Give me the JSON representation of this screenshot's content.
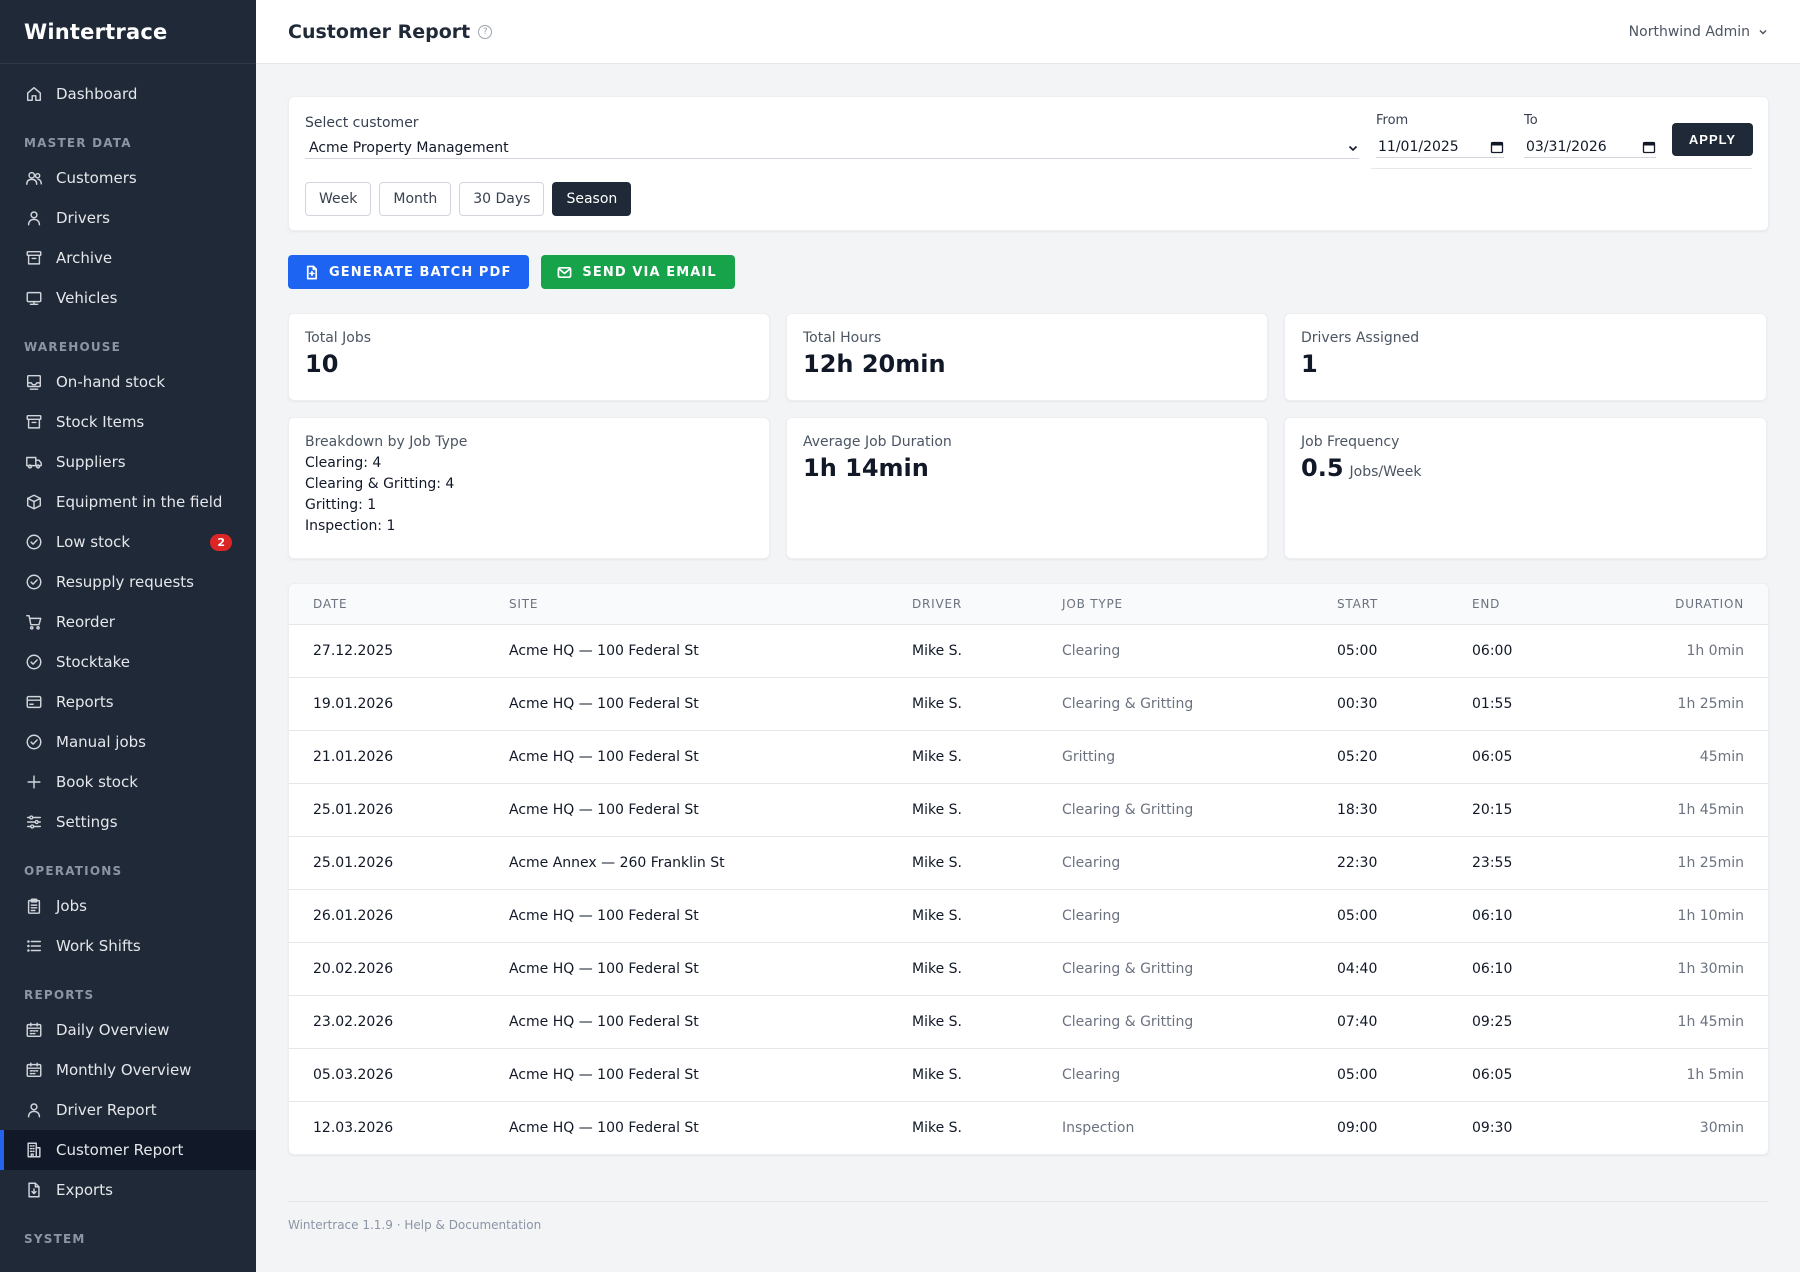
{
  "app": {
    "name": "Wintertrace",
    "version_label": "Wintertrace 1.1.9",
    "help_link": "Help & Documentation",
    "footer_sep": " · "
  },
  "sidebar": {
    "top": [
      {
        "label": "Dashboard",
        "icon": "home-icon"
      }
    ],
    "sections": [
      {
        "label": "MASTER DATA",
        "items": [
          {
            "label": "Customers",
            "icon": "users-icon"
          },
          {
            "label": "Drivers",
            "icon": "user-icon"
          },
          {
            "label": "Archive",
            "icon": "archive-icon"
          },
          {
            "label": "Vehicles",
            "icon": "vehicle-icon"
          }
        ]
      },
      {
        "label": "WAREHOUSE",
        "items": [
          {
            "label": "On-hand stock",
            "icon": "inbox-icon"
          },
          {
            "label": "Stock Items",
            "icon": "box-icon"
          },
          {
            "label": "Suppliers",
            "icon": "truck-icon"
          },
          {
            "label": "Equipment in the field",
            "icon": "cube-icon"
          },
          {
            "label": "Low stock",
            "icon": "check-circle-icon",
            "badge": "2"
          },
          {
            "label": "Resupply requests",
            "icon": "check-circle-icon"
          },
          {
            "label": "Reorder",
            "icon": "cart-icon"
          },
          {
            "label": "Stocktake",
            "icon": "check-circle-icon"
          },
          {
            "label": "Reports",
            "icon": "card-icon"
          },
          {
            "label": "Manual jobs",
            "icon": "check-circle-icon"
          },
          {
            "label": "Book stock",
            "icon": "plus-icon"
          },
          {
            "label": "Settings",
            "icon": "sliders-icon"
          }
        ]
      },
      {
        "label": "OPERATIONS",
        "items": [
          {
            "label": "Jobs",
            "icon": "clipboard-icon"
          },
          {
            "label": "Work Shifts",
            "icon": "list-icon"
          }
        ]
      },
      {
        "label": "REPORTS",
        "items": [
          {
            "label": "Daily Overview",
            "icon": "calendar-icon"
          },
          {
            "label": "Monthly Overview",
            "icon": "calendar-icon"
          },
          {
            "label": "Driver Report",
            "icon": "user-icon"
          },
          {
            "label": "Customer Report",
            "icon": "building-icon",
            "active": true
          },
          {
            "label": "Exports",
            "icon": "file-download-icon"
          }
        ]
      },
      {
        "label": "SYSTEM",
        "items": []
      }
    ]
  },
  "header": {
    "title": "Customer Report",
    "user": "Northwind Admin"
  },
  "filters": {
    "customer_label": "Select customer",
    "customer_value": "Acme Property Management",
    "from_label": "From",
    "from_value": "11/01/2025",
    "to_label": "To",
    "to_value": "03/31/2026",
    "apply_label": "APPLY",
    "ranges": [
      {
        "label": "Week",
        "active": false
      },
      {
        "label": "Month",
        "active": false
      },
      {
        "label": "30 Days",
        "active": false
      },
      {
        "label": "Season",
        "active": true
      }
    ]
  },
  "actions": {
    "pdf_label": "GENERATE BATCH PDF",
    "email_label": "SEND VIA EMAIL",
    "pdf_color": "#1d64f2",
    "email_color": "#16a34a"
  },
  "stats": {
    "total_jobs": {
      "label": "Total Jobs",
      "value": "10"
    },
    "total_hours": {
      "label": "Total Hours",
      "value": "12h 20min"
    },
    "drivers": {
      "label": "Drivers Assigned",
      "value": "1"
    },
    "breakdown": {
      "label": "Breakdown by Job Type",
      "lines": [
        "Clearing: 4",
        "Clearing & Gritting: 4",
        "Gritting: 1",
        "Inspection: 1"
      ]
    },
    "avg_duration": {
      "label": "Average Job Duration",
      "value": "1h 14min"
    },
    "frequency": {
      "label": "Job Frequency",
      "value": "0.5",
      "unit": "Jobs/Week"
    }
  },
  "table": {
    "columns": [
      "DATE",
      "SITE",
      "DRIVER",
      "JOB TYPE",
      "START",
      "END",
      "DURATION"
    ],
    "rows": [
      [
        "27.12.2025",
        "Acme HQ — 100 Federal St",
        "Mike S.",
        "Clearing",
        "05:00",
        "06:00",
        "1h 0min"
      ],
      [
        "19.01.2026",
        "Acme HQ — 100 Federal St",
        "Mike S.",
        "Clearing & Gritting",
        "00:30",
        "01:55",
        "1h 25min"
      ],
      [
        "21.01.2026",
        "Acme HQ — 100 Federal St",
        "Mike S.",
        "Gritting",
        "05:20",
        "06:05",
        "45min"
      ],
      [
        "25.01.2026",
        "Acme HQ — 100 Federal St",
        "Mike S.",
        "Clearing & Gritting",
        "18:30",
        "20:15",
        "1h 45min"
      ],
      [
        "25.01.2026",
        "Acme Annex — 260 Franklin St",
        "Mike S.",
        "Clearing",
        "22:30",
        "23:55",
        "1h 25min"
      ],
      [
        "26.01.2026",
        "Acme HQ — 100 Federal St",
        "Mike S.",
        "Clearing",
        "05:00",
        "06:10",
        "1h 10min"
      ],
      [
        "20.02.2026",
        "Acme HQ — 100 Federal St",
        "Mike S.",
        "Clearing & Gritting",
        "04:40",
        "06:10",
        "1h 30min"
      ],
      [
        "23.02.2026",
        "Acme HQ — 100 Federal St",
        "Mike S.",
        "Clearing & Gritting",
        "07:40",
        "09:25",
        "1h 45min"
      ],
      [
        "05.03.2026",
        "Acme HQ — 100 Federal St",
        "Mike S.",
        "Clearing",
        "05:00",
        "06:05",
        "1h 5min"
      ],
      [
        "12.03.2026",
        "Acme HQ — 100 Federal St",
        "Mike S.",
        "Inspection",
        "09:00",
        "09:30",
        "30min"
      ]
    ]
  }
}
